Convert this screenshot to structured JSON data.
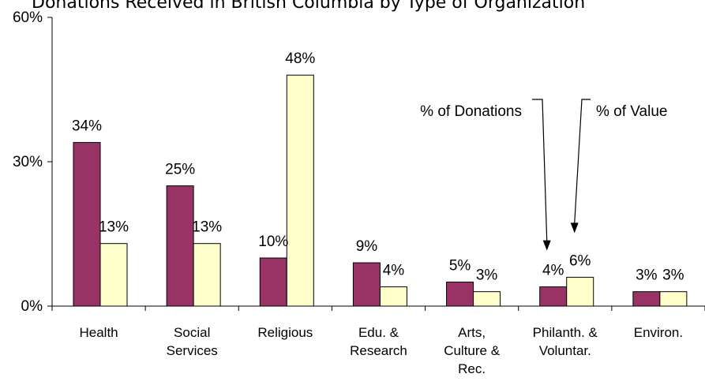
{
  "chart_data": {
    "type": "bar",
    "title": "Donations Received in British Columbia by Type of Organization",
    "xlabel": "",
    "ylabel": "",
    "ylim": [
      0,
      60
    ],
    "yticks": [
      0,
      30,
      60
    ],
    "ytick_labels": [
      "0%",
      "30%",
      "60%"
    ],
    "grid": false,
    "categories": [
      "Health",
      "Social Services",
      "Religious",
      "Edu. & Research",
      "Arts, Culture & Rec.",
      "Philanth. & Voluntar.",
      "Environ."
    ],
    "category_label_lines": [
      [
        "Health"
      ],
      [
        "Social",
        "Services"
      ],
      [
        "Religious"
      ],
      [
        "Edu. &",
        "Research"
      ],
      [
        "Arts,",
        "Culture &",
        "Rec."
      ],
      [
        "Philanth. &",
        "Voluntar."
      ],
      [
        "Environ."
      ]
    ],
    "series": [
      {
        "name": "% of Donations",
        "color": "#993366",
        "values": [
          34,
          25,
          10,
          9,
          5,
          4,
          3
        ],
        "labels": [
          "34%",
          "25%",
          "10%",
          "9%",
          "5%",
          "4%",
          "3%"
        ]
      },
      {
        "name": "% of Value",
        "color": "#FFFFCC",
        "values": [
          13,
          13,
          48,
          4,
          3,
          6,
          3
        ],
        "labels": [
          "13%",
          "13%",
          "48%",
          "4%",
          "3%",
          "6%",
          "3%"
        ]
      }
    ],
    "annotations": [
      "% of Donations",
      "% of Value"
    ]
  }
}
